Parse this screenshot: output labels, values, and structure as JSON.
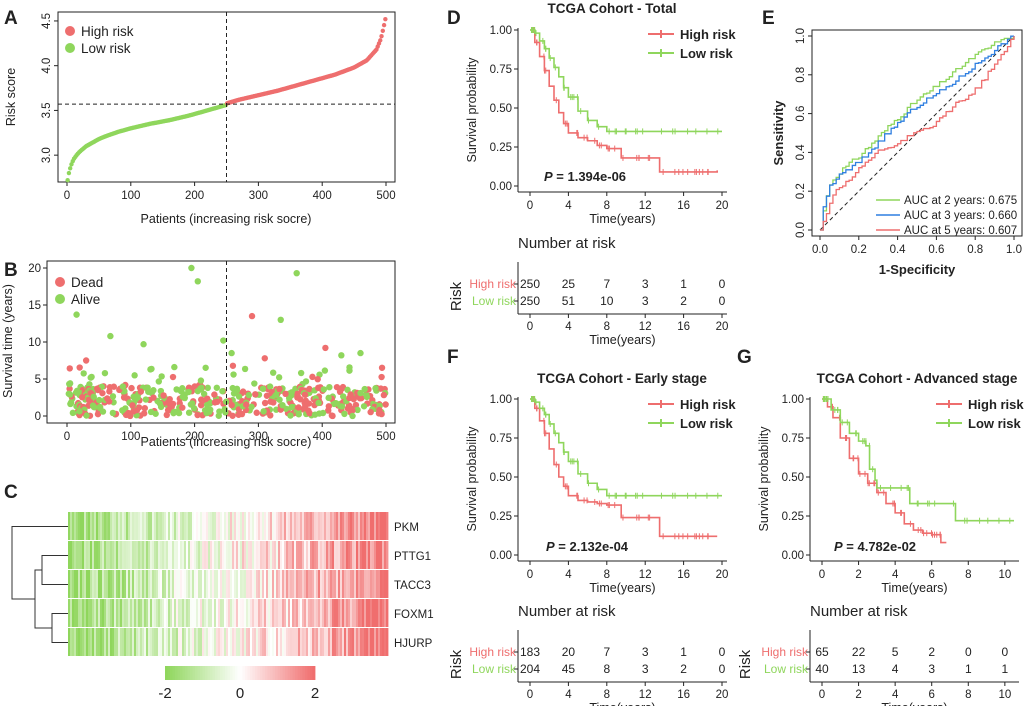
{
  "colors": {
    "high": "#ee6e6e",
    "low": "#8fd65c",
    "auc3": "#2f7fe0",
    "dead": "#ee6e6e",
    "alive": "#8fd65c",
    "axis": "#222222"
  },
  "panel_labels": [
    "A",
    "B",
    "C",
    "D",
    "E",
    "F",
    "G"
  ],
  "chart_data": [
    {
      "id": "A",
      "type": "scatter",
      "title": "",
      "xlabel": "Patients (increasing risk socre)",
      "ylabel": "Risk score",
      "xlim": [
        0,
        500
      ],
      "ylim": [
        2.7,
        4.6
      ],
      "xticks": [
        "0",
        "100",
        "200",
        "300",
        "400",
        "500"
      ],
      "yticks": [
        "3.0",
        "3.5",
        "4.0",
        "4.5"
      ],
      "cutoff": {
        "x": 250,
        "y": 3.57
      },
      "legend": [
        "High risk",
        "Low risk"
      ],
      "series": [
        {
          "name": "Low risk",
          "x": [
            1,
            3,
            6,
            10,
            15,
            20,
            30,
            40,
            50,
            60,
            80,
            100,
            130,
            160,
            190,
            220,
            249
          ],
          "y": [
            2.72,
            2.8,
            2.88,
            2.95,
            3.0,
            3.04,
            3.1,
            3.14,
            3.18,
            3.21,
            3.26,
            3.3,
            3.35,
            3.39,
            3.44,
            3.5,
            3.56
          ]
        },
        {
          "name": "High risk",
          "x": [
            251,
            270,
            300,
            330,
            360,
            390,
            420,
            450,
            470,
            485,
            492,
            496,
            499
          ],
          "y": [
            3.58,
            3.62,
            3.67,
            3.72,
            3.78,
            3.84,
            3.9,
            3.98,
            4.06,
            4.18,
            4.3,
            4.42,
            4.52
          ]
        }
      ]
    },
    {
      "id": "B",
      "type": "scatter",
      "xlabel": "Patients (increasing risk socre)",
      "ylabel": "Survival time (years)",
      "xlim": [
        0,
        500
      ],
      "ylim": [
        0,
        20
      ],
      "xticks": [
        "0",
        "100",
        "200",
        "300",
        "400",
        "500"
      ],
      "yticks": [
        "0",
        "5",
        "10",
        "15",
        "20"
      ],
      "cutoff": {
        "x": 250
      },
      "legend": [
        "Dead",
        "Alive"
      ],
      "highlight_points": [
        {
          "status": "Alive",
          "x": 195,
          "y": 20
        },
        {
          "status": "Alive",
          "x": 205,
          "y": 18.2
        },
        {
          "status": "Alive",
          "x": 360,
          "y": 19.3
        },
        {
          "status": "Alive",
          "x": 15,
          "y": 13.7
        },
        {
          "status": "Dead",
          "x": 290,
          "y": 13.5
        },
        {
          "status": "Alive",
          "x": 335,
          "y": 13
        },
        {
          "status": "Alive",
          "x": 68,
          "y": 10.8
        },
        {
          "status": "Alive",
          "x": 245,
          "y": 10.2
        },
        {
          "status": "Dead",
          "x": 405,
          "y": 9.2
        },
        {
          "status": "Alive",
          "x": 120,
          "y": 9.7
        },
        {
          "status": "Alive",
          "x": 258,
          "y": 8.5
        },
        {
          "status": "Alive",
          "x": 430,
          "y": 8.2
        },
        {
          "status": "Alive",
          "x": 460,
          "y": 8.5
        },
        {
          "status": "Dead",
          "x": 310,
          "y": 7.8
        },
        {
          "status": "Dead",
          "x": 30,
          "y": 7.5
        }
      ]
    },
    {
      "id": "C",
      "type": "heatmap",
      "rows": [
        "PKM",
        "PTTG1",
        "TACC3",
        "FOXM1",
        "HJURP"
      ],
      "scale": {
        "min": "-2",
        "mid": "0",
        "max": "2"
      }
    },
    {
      "id": "D",
      "type": "line",
      "title": "TCGA Cohort - Total",
      "xlabel": "Time(years)",
      "ylabel": "Survival probability",
      "xlim": [
        0,
        20
      ],
      "ylim": [
        0,
        1
      ],
      "xticks": [
        "0",
        "4",
        "8",
        "12",
        "16",
        "20"
      ],
      "yticks": [
        "0.00",
        "0.25",
        "0.50",
        "0.75",
        "1.00"
      ],
      "pvalue_label": "P",
      "pvalue": " = 1.394e-06",
      "legend": [
        "High risk",
        "Low risk"
      ],
      "series": [
        {
          "name": "High risk",
          "x": [
            0,
            0.5,
            1,
            1.5,
            2,
            2.5,
            3,
            3.5,
            4,
            5,
            6,
            7,
            8,
            9.5,
            13.5,
            19.5
          ],
          "y": [
            1,
            0.92,
            0.83,
            0.74,
            0.64,
            0.55,
            0.47,
            0.4,
            0.34,
            0.31,
            0.29,
            0.26,
            0.24,
            0.18,
            0.09,
            0.1
          ]
        },
        {
          "name": "Low risk",
          "x": [
            0,
            0.5,
            1,
            1.5,
            2,
            2.5,
            3,
            3.5,
            4,
            5,
            6,
            7,
            8,
            10,
            20
          ],
          "y": [
            1,
            0.98,
            0.93,
            0.88,
            0.82,
            0.76,
            0.7,
            0.63,
            0.57,
            0.48,
            0.42,
            0.38,
            0.35,
            0.35,
            0.35
          ]
        }
      ],
      "risk_table": {
        "title": "Number at risk",
        "label": "Risk",
        "xlabel": "Time(years)",
        "rows": [
          {
            "name": "High risk",
            "counts": [
              "250",
              "25",
              "7",
              "3",
              "1",
              "0"
            ]
          },
          {
            "name": "Low risk",
            "counts": [
              "250",
              "51",
              "10",
              "3",
              "2",
              "0"
            ]
          }
        ]
      }
    },
    {
      "id": "E",
      "type": "line",
      "xlabel": "1-Specificity",
      "ylabel": "Sensitivity",
      "xlim": [
        0,
        1
      ],
      "ylim": [
        0,
        1
      ],
      "xticks": [
        "0.0",
        "0.2",
        "0.4",
        "0.6",
        "0.8",
        "1.0"
      ],
      "yticks": [
        "0.0",
        "0.2",
        "0.4",
        "0.6",
        "0.8",
        "1.0"
      ],
      "legend": [
        "AUC at 2 years: 0.675",
        "AUC at 3 years: 0.660",
        "AUC at 5 years: 0.607"
      ],
      "series": [
        {
          "name": "AUC at 2 years: 0.675",
          "x": [
            0,
            0.02,
            0.05,
            0.1,
            0.2,
            0.3,
            0.4,
            0.5,
            0.6,
            0.7,
            0.8,
            0.9,
            1
          ],
          "y": [
            0,
            0.12,
            0.24,
            0.3,
            0.38,
            0.48,
            0.58,
            0.67,
            0.74,
            0.82,
            0.9,
            0.96,
            1
          ]
        },
        {
          "name": "AUC at 3 years: 0.660",
          "x": [
            0,
            0.02,
            0.05,
            0.1,
            0.2,
            0.3,
            0.4,
            0.5,
            0.6,
            0.7,
            0.8,
            0.9,
            1
          ],
          "y": [
            0,
            0.13,
            0.23,
            0.28,
            0.35,
            0.45,
            0.55,
            0.64,
            0.7,
            0.77,
            0.85,
            0.93,
            1
          ]
        },
        {
          "name": "AUC at 5 years: 0.607",
          "x": [
            0,
            0.03,
            0.08,
            0.15,
            0.2,
            0.3,
            0.4,
            0.5,
            0.6,
            0.7,
            0.8,
            0.9,
            1
          ],
          "y": [
            0,
            0.08,
            0.2,
            0.25,
            0.32,
            0.4,
            0.45,
            0.5,
            0.55,
            0.65,
            0.72,
            0.85,
            1
          ]
        }
      ]
    },
    {
      "id": "F",
      "type": "line",
      "title": "TCGA Cohort - Early stage",
      "xlabel": "Time(years)",
      "ylabel": "Survival probability",
      "xlim": [
        0,
        20
      ],
      "ylim": [
        0,
        1
      ],
      "xticks": [
        "0",
        "4",
        "8",
        "12",
        "16",
        "20"
      ],
      "yticks": [
        "0.00",
        "0.25",
        "0.50",
        "0.75",
        "1.00"
      ],
      "pvalue_label": "P",
      "pvalue": " = 2.132e-04",
      "legend": [
        "High risk",
        "Low risk"
      ],
      "series": [
        {
          "name": "High risk",
          "x": [
            0,
            0.5,
            1,
            1.5,
            2,
            2.5,
            3,
            3.5,
            4,
            5,
            6,
            7,
            8,
            9.5,
            13.5,
            19.5
          ],
          "y": [
            1,
            0.94,
            0.86,
            0.78,
            0.68,
            0.58,
            0.5,
            0.44,
            0.38,
            0.35,
            0.34,
            0.33,
            0.32,
            0.24,
            0.12,
            0.12
          ]
        },
        {
          "name": "Low risk",
          "x": [
            0,
            0.5,
            1,
            1.5,
            2,
            2.5,
            3,
            3.5,
            4,
            5,
            6,
            7,
            8,
            10,
            20
          ],
          "y": [
            1,
            0.98,
            0.94,
            0.9,
            0.84,
            0.78,
            0.72,
            0.66,
            0.6,
            0.52,
            0.46,
            0.42,
            0.38,
            0.38,
            0.38
          ]
        }
      ],
      "risk_table": {
        "title": "Number at risk",
        "label": "Risk",
        "xlabel": "Time(years)",
        "rows": [
          {
            "name": "High risk",
            "counts": [
              "183",
              "20",
              "7",
              "3",
              "1",
              "0"
            ]
          },
          {
            "name": "Low risk",
            "counts": [
              "204",
              "45",
              "8",
              "3",
              "2",
              "0"
            ]
          }
        ]
      }
    },
    {
      "id": "G",
      "type": "line",
      "title": "TCGA Cohort - Advanced stage",
      "xlabel": "Time(years)",
      "ylabel": "Survival probability",
      "xlim": [
        0,
        10.5
      ],
      "ylim": [
        0,
        1
      ],
      "xticks": [
        "0",
        "2",
        "4",
        "6",
        "8",
        "10"
      ],
      "yticks": [
        "0.00",
        "0.25",
        "0.50",
        "0.75",
        "1.00"
      ],
      "pvalue_label": "P",
      "pvalue": " = 4.782e-02",
      "legend": [
        "High risk",
        "Low risk"
      ],
      "series": [
        {
          "name": "High risk",
          "x": [
            0,
            0.3,
            0.6,
            1,
            1.5,
            2,
            2.5,
            3,
            3.5,
            4,
            4.5,
            5,
            5.5,
            6,
            6.5,
            6.8
          ],
          "y": [
            1,
            0.95,
            0.88,
            0.75,
            0.62,
            0.52,
            0.46,
            0.4,
            0.33,
            0.27,
            0.2,
            0.16,
            0.14,
            0.13,
            0.08,
            0.08
          ]
        },
        {
          "name": "Low risk",
          "x": [
            0,
            0.5,
            1,
            1.5,
            2,
            2.4,
            2.6,
            2.9,
            3,
            4.8,
            7.3,
            10.5
          ],
          "y": [
            1,
            0.93,
            0.85,
            0.78,
            0.73,
            0.7,
            0.55,
            0.48,
            0.43,
            0.33,
            0.22,
            0.22
          ]
        }
      ],
      "risk_table": {
        "title": "Number at risk",
        "label": "Risk",
        "xlabel": "Time(years)",
        "rows": [
          {
            "name": "High risk",
            "counts": [
              "65",
              "22",
              "5",
              "2",
              "0",
              "0"
            ]
          },
          {
            "name": "Low risk",
            "counts": [
              "40",
              "13",
              "4",
              "3",
              "1",
              "1"
            ]
          }
        ]
      }
    }
  ]
}
